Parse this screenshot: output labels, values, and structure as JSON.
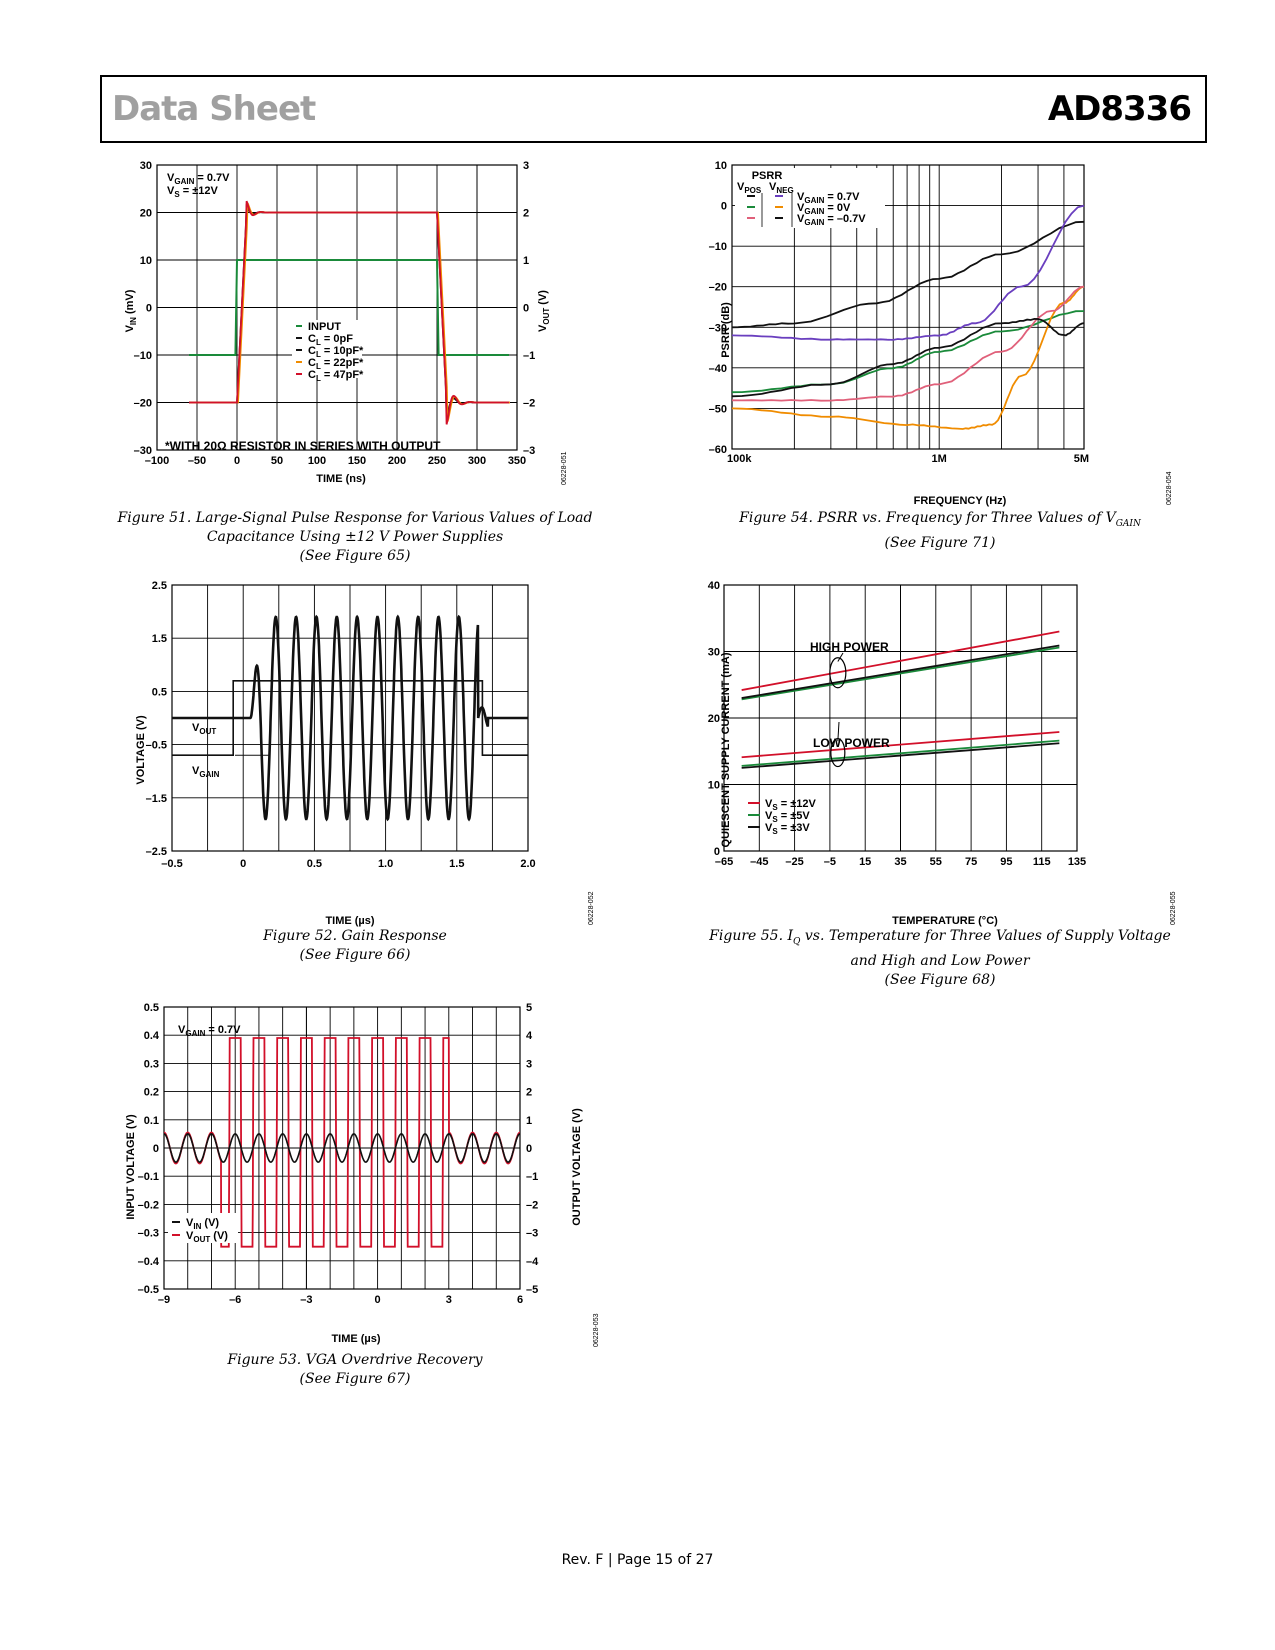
{
  "header": {
    "doc_type": "Data Sheet",
    "part_number": "AD8336"
  },
  "footer": {
    "text": "Rev. F | Page 15 of 27"
  },
  "figures": {
    "fig51": {
      "caption": [
        "Figure 51. Large-Signal Pulse Response for Various Values of Load",
        "Capacitance Using ±12 V Power Supplies",
        "(See Figure 65)"
      ],
      "code": "06228-051",
      "annotation_vgain": "V_GAIN = 0.7V",
      "annotation_vs": "V_S = ±12V",
      "note": "*WITH 20Ω RESISTOR IN SERIES WITH OUTPUT",
      "xlabel": "TIME (ns)",
      "ylabel": "V_IN (mV)",
      "y2label": "V_OUT (V)",
      "legend": [
        "INPUT",
        "C_L = 0pF",
        "C_L = 10pF*",
        "C_L = 22pF*",
        "C_L = 47pF*"
      ],
      "xticks": [
        "–100",
        "–50",
        "0",
        "50",
        "100",
        "150",
        "200",
        "250",
        "300",
        "350"
      ],
      "yticks": [
        "30",
        "20",
        "10",
        "0",
        "–10",
        "–20",
        "–30"
      ],
      "y2ticks": [
        "3",
        "2",
        "1",
        "0",
        "–1",
        "–2",
        "–3"
      ]
    },
    "fig52": {
      "caption": [
        "Figure 52. Gain Response",
        "(See Figure 66)"
      ],
      "code": "06228-052",
      "xlabel": "TIME (µs)",
      "ylabel": "VOLTAGE (V)",
      "label_vout": "V_OUT",
      "label_vgain": "V_GAIN",
      "xticks": [
        "–0.5",
        "0",
        "0.5",
        "1.0",
        "1.5",
        "2.0"
      ],
      "yticks": [
        "2.5",
        "1.5",
        "0.5",
        "–0.5",
        "–1.5",
        "–2.5"
      ]
    },
    "fig53": {
      "caption": [
        "Figure 53. VGA Overdrive Recovery",
        "(See Figure 67)"
      ],
      "code": "06228-053",
      "annotation_vgain": "V_GAIN = 0.7V",
      "xlabel": "TIME (µs)",
      "ylabel": "INPUT VOLTAGE (V)",
      "y2label": "OUTPUT VOLTAGE (V)",
      "legend": [
        "V_IN (V)",
        "V_OUT (V)"
      ],
      "xticks": [
        "–9",
        "–6",
        "–3",
        "0",
        "3",
        "6"
      ],
      "yticks": [
        "0.5",
        "0.4",
        "0.3",
        "0.2",
        "0.1",
        "0",
        "–0.1",
        "–0.2",
        "–0.3",
        "–0.4",
        "–0.5"
      ],
      "y2ticks": [
        "5",
        "4",
        "3",
        "2",
        "1",
        "0",
        "–1",
        "–2",
        "–3",
        "–4",
        "–5"
      ]
    },
    "fig54": {
      "caption": [
        "Figure 54. PSRR vs. Frequency for Three Values of V_GAIN",
        "(See Figure 71)"
      ],
      "code": "06228-054",
      "xlabel": "FREQUENCY (Hz)",
      "ylabel": "PSRR (dB)",
      "legend_title": "PSRR",
      "legend_vpos": "V_POS",
      "legend_vneg": "V_NEG",
      "legend": [
        "V_GAIN = 0.7V",
        "V_GAIN = 0V",
        "V_GAIN = –0.7V"
      ],
      "xticks": [
        "100k",
        "1M",
        "5M"
      ],
      "yticks": [
        "10",
        "0",
        "–10",
        "–20",
        "–30",
        "–40",
        "–50",
        "–60"
      ]
    },
    "fig55": {
      "caption": [
        "Figure 55. I_Q vs. Temperature for Three Values of Supply Voltage",
        "and High and Low Power",
        "(See Figure 68)"
      ],
      "code": "06228-055",
      "xlabel": "TEMPERATURE (°C)",
      "ylabel": "QUIESCENT SUPPLY CURRENT (mA)",
      "label_high": "HIGH POWER",
      "label_low": "LOW POWER",
      "legend": [
        "V_S = ±12V",
        "V_S = ±5V",
        "V_S = ±3V"
      ],
      "xticks": [
        "–65",
        "–45",
        "–25",
        "–5",
        "15",
        "35",
        "55",
        "75",
        "95",
        "115",
        "135"
      ],
      "yticks": [
        "40",
        "30",
        "20",
        "10",
        "0"
      ]
    }
  },
  "chart_data": [
    {
      "type": "line",
      "id": "fig51",
      "xlabel": "TIME (ns)",
      "ylabel": "V_IN (mV)",
      "y2label": "V_OUT (V)",
      "xlim": [
        -100,
        350
      ],
      "ylim": [
        -30,
        30
      ],
      "y2lim": [
        -3,
        3
      ],
      "series": [
        {
          "name": "INPUT",
          "color": "#1a8a3a",
          "axis": "left",
          "x": [
            -60,
            -2,
            0,
            250,
            252,
            340
          ],
          "y": [
            -10,
            -10,
            10,
            10,
            -10,
            -10
          ]
        },
        {
          "name": "C_L = 0pF",
          "color": "#111111",
          "axis": "right",
          "x": [
            -60,
            0,
            12,
            250,
            260,
            340
          ],
          "y": [
            -2,
            -2,
            2,
            2,
            -2,
            -2
          ]
        },
        {
          "name": "C_L = 10pF*",
          "color": "#111111",
          "axis": "right",
          "x": [
            -60,
            0,
            12,
            250,
            260,
            340
          ],
          "y": [
            -2,
            -2,
            2,
            2,
            -2,
            -2
          ]
        },
        {
          "name": "C_L = 22pF*",
          "color": "#f08c00",
          "axis": "right",
          "x": [
            -60,
            0,
            12,
            250,
            260,
            340
          ],
          "y": [
            -2,
            -2,
            2,
            2,
            -2,
            -2
          ]
        },
        {
          "name": "C_L = 47pF*",
          "color": "#d2102a",
          "axis": "right",
          "x": [
            -60,
            0,
            12,
            250,
            260,
            340
          ],
          "y": [
            -2,
            -2,
            2,
            2,
            -2,
            -2
          ]
        }
      ]
    },
    {
      "type": "line",
      "id": "fig52",
      "xlabel": "TIME (µs)",
      "ylabel": "VOLTAGE (V)",
      "xlim": [
        -0.5,
        2.0
      ],
      "ylim": [
        -2.5,
        2.5
      ],
      "series": [
        {
          "name": "V_OUT",
          "color": "#111111",
          "burst_start": 0.05,
          "burst_end": 1.65,
          "cycles": 12,
          "baseline": 0.0,
          "amplitude": 1.9
        },
        {
          "name": "V_GAIN",
          "color": "#111111",
          "x": [
            -0.5,
            -0.07,
            -0.07,
            1.68,
            1.68,
            2.0
          ],
          "y": [
            -0.7,
            -0.7,
            0.7,
            0.7,
            -0.7,
            -0.7
          ]
        }
      ]
    },
    {
      "type": "line",
      "id": "fig53",
      "xlabel": "TIME (µs)",
      "ylabel": "INPUT VOLTAGE (V)",
      "y2label": "OUTPUT VOLTAGE (V)",
      "xlim": [
        -9,
        6
      ],
      "ylim": [
        -0.5,
        0.5
      ],
      "y2lim": [
        -5,
        5
      ],
      "series": [
        {
          "name": "V_IN (V)",
          "color": "#111111",
          "axis": "left",
          "period": 1,
          "amplitude_small": 0.05
        },
        {
          "name": "V_OUT (V)",
          "color": "#d2102a",
          "axis": "right",
          "period": 1,
          "clip_hi": 3.9,
          "clip_lo": -3.5,
          "overdrive_start": -6.5,
          "overdrive_end": 3.0
        }
      ]
    },
    {
      "type": "line",
      "id": "fig54",
      "xscale": "log",
      "xlabel": "FREQUENCY (Hz)",
      "ylabel": "PSRR (dB)",
      "xlim": [
        100000,
        5000000
      ],
      "ylim": [
        -60,
        10
      ],
      "series": [
        {
          "name": "V_POS, V_GAIN = 0.7V",
          "color": "#111111",
          "x": [
            100000,
            200000,
            500000,
            1000000,
            2000000,
            5000000
          ],
          "y": [
            -30,
            -29,
            -24,
            -18,
            -12,
            -4
          ]
        },
        {
          "name": "V_NEG, V_GAIN = 0.7V",
          "color": "#6a3fbf",
          "x": [
            100000,
            300000,
            600000,
            1000000,
            1500000,
            2500000,
            5000000
          ],
          "y": [
            -32,
            -33,
            -33,
            -32,
            -29,
            -20,
            0
          ]
        },
        {
          "name": "V_POS, V_GAIN = 0V",
          "color": "#1a8a3a",
          "x": [
            100000,
            300000,
            600000,
            1000000,
            2000000,
            5000000
          ],
          "y": [
            -46,
            -44,
            -40,
            -36,
            -31,
            -26
          ]
        },
        {
          "name": "V_NEG, V_GAIN = 0V",
          "color": "#f08c00",
          "x": [
            100000,
            300000,
            700000,
            1300000,
            1800000,
            2500000,
            4000000,
            5000000
          ],
          "y": [
            -50,
            -52,
            -54,
            -55,
            -54,
            -42,
            -24,
            -20
          ]
        },
        {
          "name": "V_POS, V_GAIN = –0.7V",
          "color": "#e0607a",
          "x": [
            100000,
            300000,
            600000,
            1000000,
            2000000,
            3500000,
            5000000
          ],
          "y": [
            -48,
            -48,
            -47,
            -44,
            -36,
            -26,
            -20
          ]
        },
        {
          "name": "V_NEG, V_GAIN = –0.7V",
          "color": "#111111",
          "x": [
            100000,
            300000,
            600000,
            1000000,
            2000000,
            3000000,
            4000000,
            5000000
          ],
          "y": [
            -47,
            -44,
            -39,
            -35,
            -29,
            -28,
            -32,
            -29
          ]
        }
      ]
    },
    {
      "type": "line",
      "id": "fig55",
      "xlabel": "TEMPERATURE (°C)",
      "ylabel": "QUIESCENT SUPPLY CURRENT (mA)",
      "xlim": [
        -65,
        135
      ],
      "ylim": [
        0,
        40
      ],
      "series": [
        {
          "name": "V_S = ±12V, HIGH POWER",
          "color": "#d2102a",
          "x": [
            -55,
            125
          ],
          "y": [
            24.2,
            33.0
          ]
        },
        {
          "name": "V_S = ±5V, HIGH POWER",
          "color": "#1a8a3a",
          "x": [
            -55,
            125
          ],
          "y": [
            22.8,
            30.6
          ]
        },
        {
          "name": "V_S = ±3V, HIGH POWER",
          "color": "#111111",
          "x": [
            -55,
            125
          ],
          "y": [
            23.0,
            30.9
          ]
        },
        {
          "name": "V_S = ±12V, LOW POWER",
          "color": "#d2102a",
          "x": [
            -55,
            125
          ],
          "y": [
            14.1,
            17.9
          ]
        },
        {
          "name": "V_S = ±5V, LOW POWER",
          "color": "#1a8a3a",
          "x": [
            -55,
            125
          ],
          "y": [
            12.8,
            16.6
          ]
        },
        {
          "name": "V_S = ±3V, LOW POWER",
          "color": "#111111",
          "x": [
            -55,
            125
          ],
          "y": [
            12.5,
            16.2
          ]
        }
      ]
    }
  ]
}
